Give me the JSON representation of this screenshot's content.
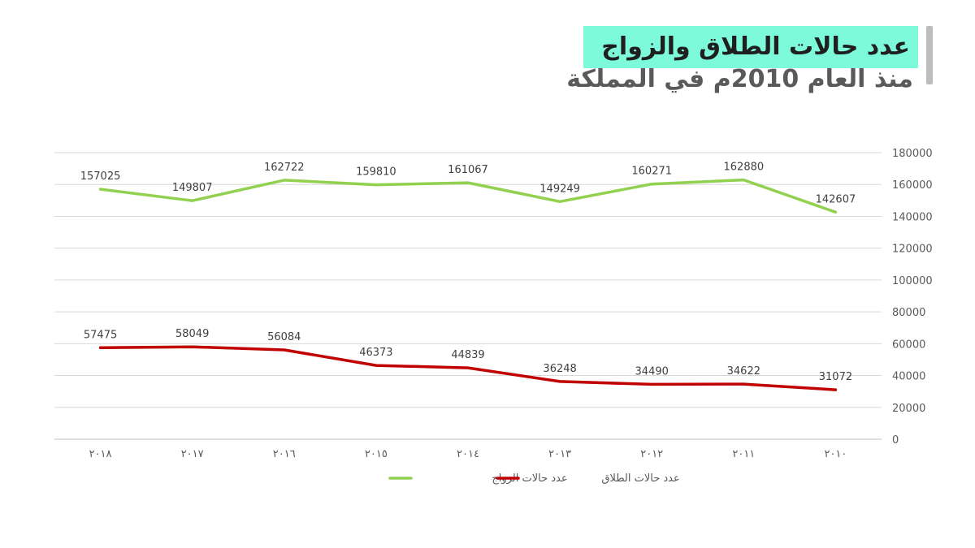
{
  "title": {
    "line1": "عدد حالات الطلاق والزواج",
    "line2": "منذ العام 2010م في المملكة"
  },
  "colors": {
    "title_highlight": "#7dfad9",
    "marriage": "#92d050",
    "divorce": "#c00000"
  },
  "chart_data": {
    "type": "line",
    "title": "عدد حالات الطلاق والزواج منذ العام 2010م في المملكة",
    "xlabel": "",
    "ylabel": "",
    "categories": [
      "٢٠١٨",
      "٢٠١٧",
      "٢٠١٦",
      "٢٠١٥",
      "٢٠١٤",
      "٢٠١٣",
      "٢٠١٢",
      "٢٠١١",
      "٢٠١٠"
    ],
    "ylim": [
      0,
      180000
    ],
    "yticks": [
      "0",
      "20000",
      "40000",
      "60000",
      "80000",
      "100000",
      "120000",
      "140000",
      "160000",
      "180000"
    ],
    "grid": true,
    "legend_position": "bottom",
    "series": [
      {
        "name": "عدد حالات الزواج",
        "color": "#92d050",
        "values": [
          157025,
          149807,
          162722,
          159810,
          161067,
          149249,
          160271,
          162880,
          142607
        ]
      },
      {
        "name": "عدد حالات الطلاق",
        "color": "#c00000",
        "values": [
          57475,
          58049,
          56084,
          46373,
          44839,
          36248,
          34490,
          34622,
          31072
        ]
      }
    ]
  }
}
